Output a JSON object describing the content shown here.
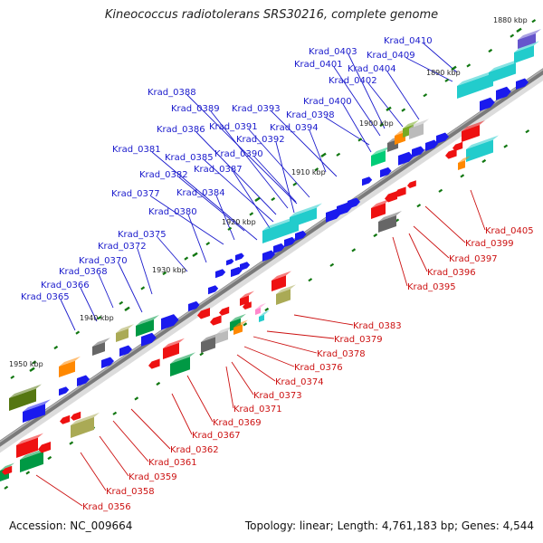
{
  "title": "Kineococcus radiotolerans SRS30216, complete genome",
  "footer": {
    "accession": "Accession: NC_009664",
    "summary": "Topology: linear; Length: 4,761,183 bp; Genes: 4,544"
  },
  "colors": {
    "forward": "#1a1aee",
    "reverse": "#ee1111",
    "backbone": "#7a7a7a",
    "tick": "#117711"
  },
  "scale_labels": [
    "1880 kbp",
    "1890 kbp",
    "1900 kbp",
    "1910 kbp",
    "1920 kbp",
    "1930 kbp",
    "1940 kbp",
    "1950 kbp"
  ],
  "upper_labels": [
    "Krad_0410",
    "Krad_0403",
    "Krad_0409",
    "Krad_0401",
    "Krad_0404",
    "Krad_0402",
    "Krad_0388",
    "Krad_0400",
    "Krad_0389",
    "Krad_0393",
    "Krad_0398",
    "Krad_0386",
    "Krad_0391",
    "Krad_0394",
    "Krad_0392",
    "Krad_0381",
    "Krad_0385",
    "Krad_0390",
    "Krad_0382",
    "Krad_0387",
    "Krad_0377",
    "Krad_0384",
    "Krad_0380",
    "Krad_0375",
    "Krad_0372",
    "Krad_0370",
    "Krad_0368",
    "Krad_0366",
    "Krad_0365"
  ],
  "lower_labels": [
    "Krad_0405",
    "Krad_0399",
    "Krad_0397",
    "Krad_0396",
    "Krad_0395",
    "Krad_0383",
    "Krad_0379",
    "Krad_0378",
    "Krad_0376",
    "Krad_0374",
    "Krad_0373",
    "Krad_0371",
    "Krad_0369",
    "Krad_0367",
    "Krad_0362",
    "Krad_0361",
    "Krad_0359",
    "Krad_0358",
    "Krad_0356"
  ]
}
